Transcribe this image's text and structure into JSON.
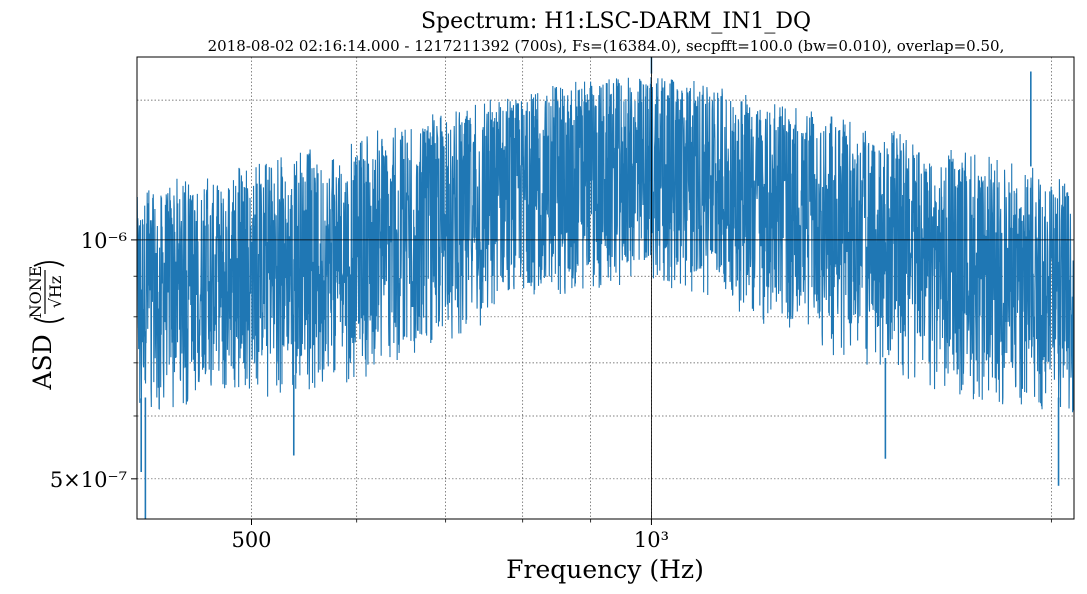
{
  "chart_data": {
    "type": "line",
    "title": "Spectrum: H1:LSC-DARM_IN1_DQ",
    "subtitle": "2018-08-02 02:16:14.000 - 1217211392 (700s), Fs=(16384.0), secpfft=100.0 (bw=0.010), overlap=0.50,",
    "xlabel": "Frequency (Hz)",
    "ylabel": {
      "prefix": "ASD",
      "numerator": "NONE",
      "denominator": "√Hz"
    },
    "xscale": "log",
    "yscale": "log",
    "xlim": [
      410,
      2080
    ],
    "ylim": [
      4.45e-07,
      1.7e-06
    ],
    "grid": true,
    "color": "#1f77b4",
    "x_ticks": [
      {
        "value": 500,
        "label": "500"
      },
      {
        "value": 1000,
        "label": "10³"
      }
    ],
    "y_ticks": [
      {
        "value": 5e-07,
        "label": "5×10⁻⁷"
      },
      {
        "value": 1e-06,
        "label": "10⁻⁶"
      }
    ],
    "x_minor_ticks": [
      600,
      700,
      800,
      900,
      2000
    ],
    "y_minor_ticks": [
      6e-07,
      7e-07,
      8e-07,
      9e-07
    ],
    "series": [
      {
        "name": "H1:LSC-DARM_IN1_DQ",
        "envelope": {
          "x": [
            410,
            450,
            500,
            600,
            700,
            800,
            900,
            1000,
            1100,
            1200,
            1300,
            1500,
            1700,
            1900,
            2080
          ],
          "upper": [
            1.18e-06,
            1.2e-06,
            1.25e-06,
            1.35e-06,
            1.46e-06,
            1.55e-06,
            1.6e-06,
            1.62e-06,
            1.58e-06,
            1.52e-06,
            1.46e-06,
            1.38e-06,
            1.3e-06,
            1.25e-06,
            1.18e-06
          ],
          "lower": [
            6.3e-07,
            6.5e-07,
            6.6e-07,
            7e-07,
            7.8e-07,
            8.6e-07,
            9.1e-07,
            9.3e-07,
            8.9e-07,
            8.3e-07,
            7.7e-07,
            7.1e-07,
            6.7e-07,
            6.4e-07,
            6.3e-07
          ]
        },
        "peaks": [
          {
            "x": 1930,
            "value": 1.63e-06
          },
          {
            "x": 1000,
            "value": 1.7e-06
          }
        ],
        "dips": [
          {
            "x": 416,
            "value": 4.45e-07
          },
          {
            "x": 413,
            "value": 5.1e-07
          },
          {
            "x": 538,
            "value": 5.35e-07
          },
          {
            "x": 2025,
            "value": 4.9e-07
          },
          {
            "x": 1500,
            "value": 5.3e-07
          }
        ]
      }
    ]
  }
}
